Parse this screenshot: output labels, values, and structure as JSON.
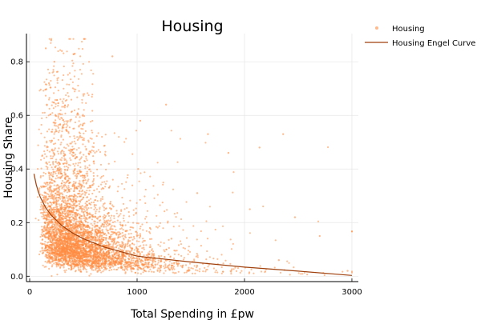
{
  "chart_data": {
    "type": "scatter",
    "title": "Housing",
    "xlabel": "Total Spending in £pw",
    "ylabel": "Housing Share",
    "xlim": [
      -30,
      3060
    ],
    "ylim": [
      -0.02,
      0.905
    ],
    "x_ticks": [
      0,
      1000,
      2000,
      3000
    ],
    "y_ticks": [
      0.0,
      0.2,
      0.4,
      0.6,
      0.8
    ],
    "grid": true,
    "legend_placement": "outside-top-right",
    "series": [
      {
        "name": "Housing",
        "type": "scatter",
        "color": "#ff8c42",
        "approx_count": 5000,
        "points_sample": [
          [
            150,
            0.85
          ],
          [
            200,
            0.88
          ],
          [
            230,
            0.8
          ],
          [
            300,
            0.84
          ],
          [
            420,
            0.83
          ],
          [
            770,
            0.82
          ],
          [
            180,
            0.72
          ],
          [
            160,
            0.64
          ],
          [
            1030,
            0.58
          ],
          [
            1270,
            0.64
          ],
          [
            1660,
            0.53
          ],
          [
            1850,
            0.46
          ],
          [
            2360,
            0.53
          ],
          [
            2140,
            0.48
          ],
          [
            1010,
            0.4
          ],
          [
            1560,
            0.31
          ],
          [
            2050,
            0.25
          ],
          [
            2470,
            0.22
          ],
          [
            2700,
            0.15
          ],
          [
            2960,
            0.02
          ],
          [
            2320,
            0.06
          ],
          [
            1320,
            0.14
          ],
          [
            1120,
            0.18
          ],
          [
            780,
            0.26
          ],
          [
            600,
            0.32
          ]
        ]
      },
      {
        "name": "Housing Engel Curve",
        "type": "line",
        "color": "#a0410d",
        "x": [
          40,
          60,
          80,
          100,
          150,
          200,
          300,
          400,
          500,
          700,
          1000,
          1500,
          2000,
          2500,
          3000
        ],
        "y": [
          0.382,
          0.343,
          0.316,
          0.294,
          0.255,
          0.228,
          0.189,
          0.161,
          0.14,
          0.108,
          0.075,
          0.053,
          0.034,
          0.019,
          0.003
        ]
      }
    ]
  }
}
